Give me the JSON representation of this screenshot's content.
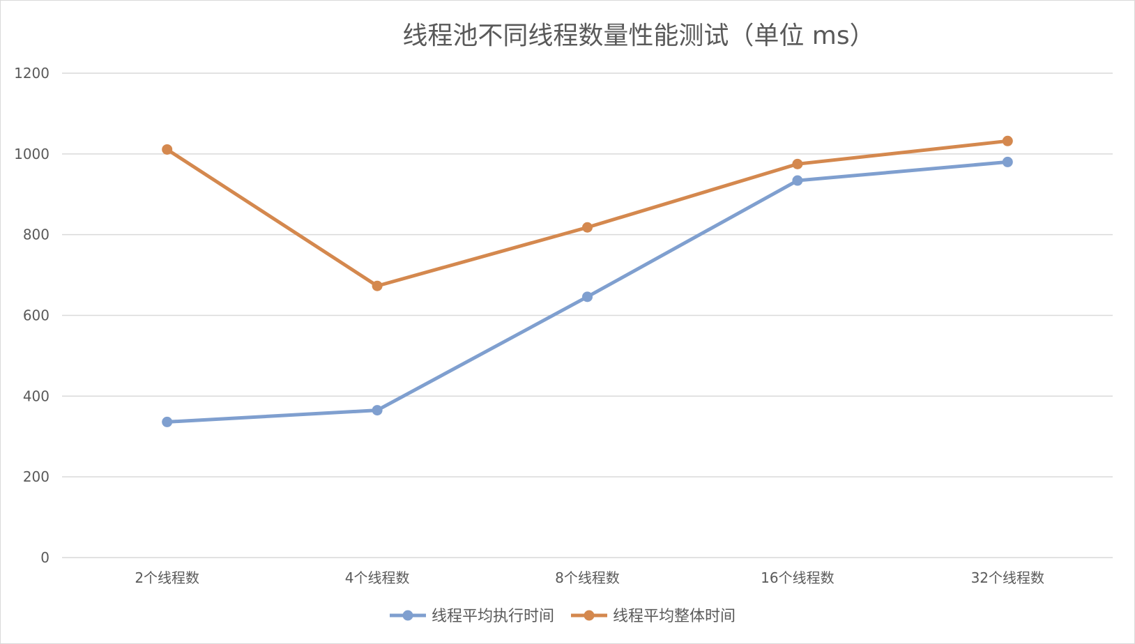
{
  "chart_data": {
    "type": "line",
    "title": "线程池不同线程数量性能测试（单位 ms）",
    "xlabel": "",
    "ylabel": "",
    "categories": [
      "2个线程数",
      "4个线程数",
      "8个线程数",
      "16个线程数",
      "32个线程数"
    ],
    "ylim": [
      0,
      1200
    ],
    "yticks": [
      "0",
      "200",
      "400",
      "600",
      "800",
      "1000",
      "1200"
    ],
    "grid": true,
    "legend": "bottom",
    "series": [
      {
        "name": "线程平均执行时间",
        "color": "#7f9fcf",
        "values": [
          336,
          365,
          646,
          934,
          980
        ]
      },
      {
        "name": "线程平均整体时间",
        "color": "#d4884e",
        "values": [
          1011,
          673,
          818,
          975,
          1032
        ]
      }
    ]
  }
}
